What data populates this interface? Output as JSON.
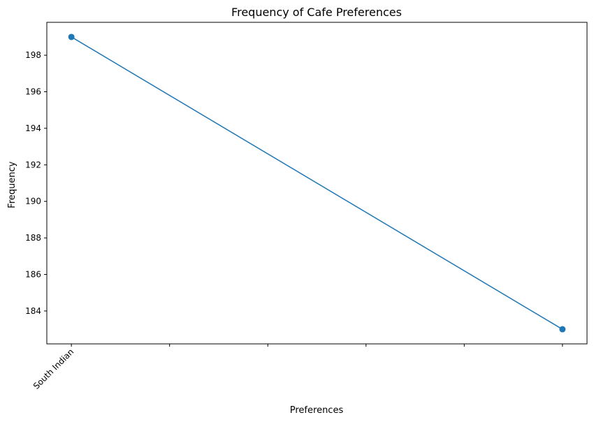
{
  "chart_data": {
    "type": "line",
    "title": "Frequency of Cafe Preferences",
    "xlabel": "Preferences",
    "ylabel": "Frequency",
    "x_tick_labels": [
      "South Indian",
      "",
      "",
      "",
      "",
      ""
    ],
    "x": [
      0,
      5
    ],
    "series": [
      {
        "values": [
          199,
          183
        ],
        "color": "#1f77b4"
      }
    ],
    "xlim": [
      -0.25,
      5.25
    ],
    "ylim": [
      182.2,
      199.8
    ],
    "y_ticks": [
      184,
      186,
      188,
      190,
      192,
      194,
      196,
      198
    ],
    "grid": false,
    "legend": "none"
  }
}
